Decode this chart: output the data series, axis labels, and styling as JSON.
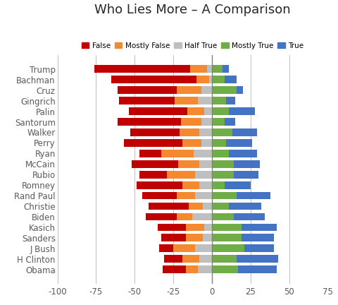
{
  "title": "Who Lies More – A Comparison",
  "categories": [
    "Trump",
    "Bachman",
    "Cruz",
    "Gingrich",
    "Palin",
    "Santorum",
    "Walker",
    "Perry",
    "Ryan",
    "McCain",
    "Rubio",
    "Romney",
    "Rand Paul",
    "Christie",
    "Biden",
    "Kasich",
    "Sanders",
    "J Bush",
    "H Clinton",
    "Obama"
  ],
  "legend_labels": [
    "False",
    "Mostly False",
    "Half True",
    "Mostly True",
    "True"
  ],
  "colors": [
    "#c00000",
    "#f4892f",
    "#bfbfbf",
    "#70ad47",
    "#4472c4"
  ],
  "data": {
    "False": [
      -62,
      -55,
      -38,
      -36,
      -38,
      -41,
      -32,
      -38,
      -14,
      -30,
      -18,
      -30,
      -22,
      -26,
      -20,
      -18,
      -16,
      -9,
      -12,
      -15
    ],
    "Mostly False": [
      -11,
      -8,
      -16,
      -15,
      -11,
      -13,
      -13,
      -12,
      -21,
      -14,
      -18,
      -11,
      -12,
      -9,
      -10,
      -12,
      -11,
      -14,
      -11,
      -8
    ],
    "Half True": [
      -3,
      -2,
      -7,
      -9,
      -5,
      -7,
      -8,
      -7,
      -12,
      -8,
      -11,
      -8,
      -11,
      -6,
      -13,
      -5,
      -6,
      -11,
      -8,
      -9
    ],
    "Mostly True": [
      7,
      8,
      16,
      9,
      11,
      8,
      13,
      9,
      11,
      14,
      14,
      8,
      16,
      11,
      14,
      19,
      19,
      21,
      16,
      17
    ],
    "True": [
      4,
      8,
      4,
      6,
      17,
      7,
      16,
      17,
      18,
      17,
      16,
      17,
      22,
      21,
      20,
      23,
      21,
      19,
      27,
      25
    ]
  },
  "xlim": [
    -100,
    75
  ],
  "xticks": [
    -100,
    -75,
    -50,
    -25,
    0,
    25,
    50,
    75
  ],
  "background_color": "#ffffff",
  "grid_color": "#bfbfbf",
  "title_fontsize": 13,
  "tick_fontsize": 8.5,
  "legend_fontsize": 7.5
}
